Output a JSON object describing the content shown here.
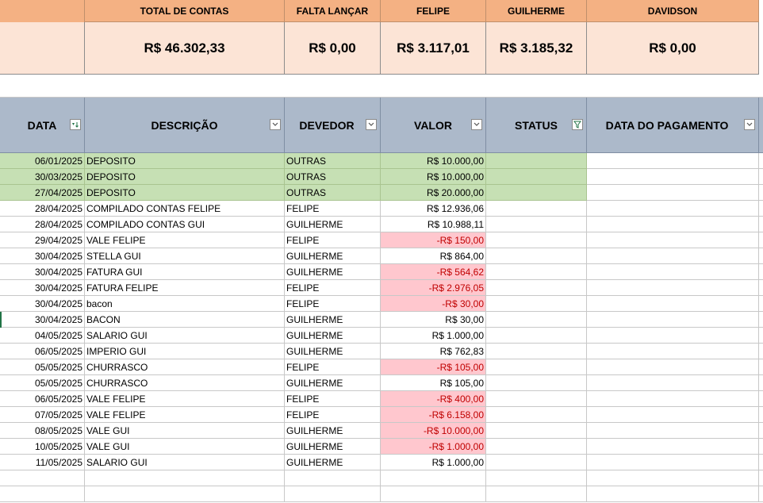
{
  "summary": {
    "headers": [
      "TOTAL DE CONTAS",
      "FALTA LANÇAR",
      "FELIPE",
      "GUILHERME",
      "DAVIDSON"
    ],
    "values": [
      "R$ 46.302,33",
      "R$ 0,00",
      "R$ 3.117,01",
      "R$ 3.185,32",
      "R$ 0,00"
    ]
  },
  "table": {
    "headers": [
      "DATA",
      "DESCRIÇÃO",
      "DEVEDOR",
      "VALOR",
      "STATUS",
      "DATA DO PAGAMENTO"
    ],
    "rows": [
      {
        "date": "06/01/2025",
        "desc": "DEPOSITO",
        "devedor": "OUTRAS",
        "valor": "R$ 10.000,00",
        "green": true,
        "neg": false
      },
      {
        "date": "30/03/2025",
        "desc": "DEPOSITO",
        "devedor": "OUTRAS",
        "valor": "R$ 10.000,00",
        "green": true,
        "neg": false
      },
      {
        "date": "27/04/2025",
        "desc": "DEPOSITO",
        "devedor": "OUTRAS",
        "valor": "R$ 20.000,00",
        "green": true,
        "neg": false
      },
      {
        "date": "28/04/2025",
        "desc": "COMPILADO CONTAS FELIPE",
        "devedor": "FELIPE",
        "valor": "R$ 12.936,06",
        "green": false,
        "neg": false
      },
      {
        "date": "28/04/2025",
        "desc": "COMPILADO CONTAS GUI",
        "devedor": "GUILHERME",
        "valor": "R$ 10.988,11",
        "green": false,
        "neg": false
      },
      {
        "date": "29/04/2025",
        "desc": "VALE FELIPE",
        "devedor": "FELIPE",
        "valor": "-R$ 150,00",
        "green": false,
        "neg": true
      },
      {
        "date": "30/04/2025",
        "desc": "STELLA GUI",
        "devedor": "GUILHERME",
        "valor": "R$ 864,00",
        "green": false,
        "neg": false
      },
      {
        "date": "30/04/2025",
        "desc": "FATURA GUI",
        "devedor": "GUILHERME",
        "valor": "-R$ 564,62",
        "green": false,
        "neg": true
      },
      {
        "date": "30/04/2025",
        "desc": "FATURA FELIPE",
        "devedor": "FELIPE",
        "valor": "-R$ 2.976,05",
        "green": false,
        "neg": true
      },
      {
        "date": "30/04/2025",
        "desc": "bacon",
        "devedor": "FELIPE",
        "valor": "-R$ 30,00",
        "green": false,
        "neg": true
      },
      {
        "date": "30/04/2025",
        "desc": "BACON",
        "devedor": "GUILHERME",
        "valor": "R$ 30,00",
        "green": false,
        "neg": false
      },
      {
        "date": "04/05/2025",
        "desc": "SALARIO GUI",
        "devedor": "GUILHERME",
        "valor": "R$ 1.000,00",
        "green": false,
        "neg": false
      },
      {
        "date": "06/05/2025",
        "desc": "IMPERIO GUI",
        "devedor": "GUILHERME",
        "valor": "R$ 762,83",
        "green": false,
        "neg": false
      },
      {
        "date": "05/05/2025",
        "desc": "CHURRASCO",
        "devedor": "FELIPE",
        "valor": "-R$ 105,00",
        "green": false,
        "neg": true
      },
      {
        "date": "05/05/2025",
        "desc": "CHURRASCO",
        "devedor": "GUILHERME",
        "valor": "R$ 105,00",
        "green": false,
        "neg": false
      },
      {
        "date": "06/05/2025",
        "desc": "VALE FELIPE",
        "devedor": "FELIPE",
        "valor": "-R$ 400,00",
        "green": false,
        "neg": true
      },
      {
        "date": "07/05/2025",
        "desc": "VALE FELIPE",
        "devedor": "FELIPE",
        "valor": "-R$ 6.158,00",
        "green": false,
        "neg": true
      },
      {
        "date": "08/05/2025",
        "desc": "VALE GUI",
        "devedor": "GUILHERME",
        "valor": "-R$ 10.000,00",
        "green": false,
        "neg": true
      },
      {
        "date": "10/05/2025",
        "desc": "VALE GUI",
        "devedor": "GUILHERME",
        "valor": "-R$ 1.000,00",
        "green": false,
        "neg": true
      },
      {
        "date": "11/05/2025",
        "desc": "SALARIO GUI",
        "devedor": "GUILHERME",
        "valor": "R$ 1.000,00",
        "green": false,
        "neg": false
      },
      {
        "date": "",
        "desc": "",
        "devedor": "",
        "valor": "",
        "green": false,
        "neg": false
      },
      {
        "date": "",
        "desc": "",
        "devedor": "",
        "valor": "",
        "green": false,
        "neg": false
      }
    ]
  },
  "colors": {
    "summary_header": "#f4b183",
    "summary_value": "#fce4d6",
    "table_header": "#acb9ca",
    "green_row": "#c6e0b4",
    "negative_fill": "#ffc7ce",
    "negative_text": "#c00000"
  }
}
